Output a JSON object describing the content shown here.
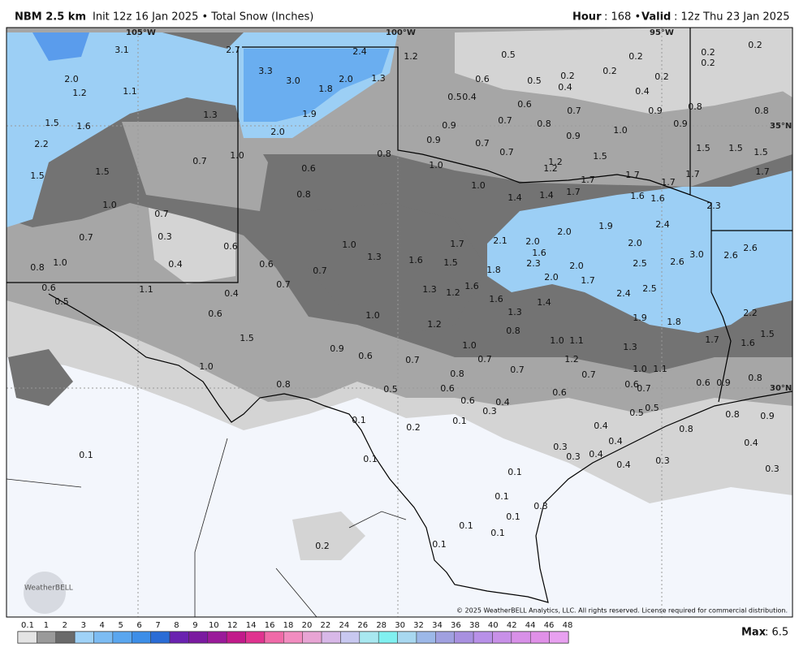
{
  "header": {
    "model": "NBM 2.5 km",
    "init": "Init 12z 16 Jan 2025 • Total Snow (Inches)",
    "hour_label": "Hour",
    "hour": ": 168 •",
    "valid_label": "Valid",
    "valid": ": 12z Thu 23 Jan 2025"
  },
  "map": {
    "grid_labels": [
      "105°W",
      "100°W",
      "95°W",
      "35°N",
      "30°N"
    ],
    "labels": [
      "3.1",
      "2.7",
      "2.4",
      "1.2",
      "0.5",
      "0.2",
      "0.2",
      "0.2",
      "2.0",
      "3.3",
      "3.0",
      "1.8",
      "2.0",
      "1.3",
      "0.6",
      "0.5",
      "0.2",
      "0.2",
      "0.2",
      "0.2",
      "1.2",
      "1.1",
      "0.4",
      "0.4",
      "0.5",
      "0.4",
      "0.6",
      "0.7",
      "0.9",
      "0.8",
      "0.8",
      "1.5",
      "1.6",
      "1.3",
      "2.0",
      "1.9",
      "0.9",
      "0.7",
      "0.8",
      "0.9",
      "1.0",
      "0.9",
      "2.2",
      "0.9",
      "0.7",
      "0.7",
      "1.5",
      "1.5",
      "1.5",
      "1.5",
      "1.5",
      "1.5",
      "0.7",
      "1.0",
      "0.8",
      "1.0",
      "1.2",
      "1.2",
      "1.7",
      "1.7",
      "1.7",
      "1.7",
      "1.7",
      "0.6",
      "0.8",
      "1.0",
      "1.4",
      "1.4",
      "1.7",
      "1.6",
      "1.6",
      "2.3",
      "1.0",
      "0.7",
      "1.9",
      "2.4",
      "0.7",
      "0.3",
      "0.6",
      "1.0",
      "1.7",
      "2.1",
      "2.0",
      "2.0",
      "2.0",
      "2.6",
      "0.4",
      "1.0",
      "0.8",
      "0.6",
      "1.3",
      "1.6",
      "1.5",
      "1.8",
      "1.6",
      "2.3",
      "2.0",
      "2.5",
      "2.6",
      "3.0",
      "2.6",
      "0.7",
      "0.7",
      "1.3",
      "1.2",
      "1.6",
      "1.7",
      "2.0",
      "2.4",
      "2.5",
      "0.6",
      "0.5",
      "1.1",
      "0.4",
      "1.6",
      "1.3",
      "1.4",
      "2.2",
      "1.9",
      "1.8",
      "0.6",
      "1.5",
      "1.0",
      "1.2",
      "0.8",
      "1.5",
      "1.7",
      "1.6",
      "1.0",
      "0.9",
      "0.6",
      "0.7",
      "1.0",
      "0.7",
      "1.0",
      "1.1",
      "1.3",
      "1.2",
      "0.8",
      "0.7",
      "0.7",
      "1.0",
      "1.1",
      "0.6",
      "0.9",
      "0.8",
      "0.8",
      "0.5",
      "0.6",
      "0.6",
      "0.6",
      "0.7",
      "0.6",
      "0.4",
      "0.3",
      "0.5",
      "0.5",
      "0.8",
      "0.9",
      "0.1",
      "0.2",
      "0.1",
      "0.4",
      "0.8",
      "0.1",
      "0.1",
      "0.3",
      "0.4",
      "0.3",
      "0.4",
      "0.4",
      "0.1",
      "0.4",
      "0.3",
      "0.3",
      "0.1",
      "0.3",
      "0.1",
      "0.1",
      "0.1",
      "0.2",
      "0.1"
    ],
    "copyright": "© 2025 WeatherBELL Analytics, LLC. All rights reserved. License required for commercial distribution.",
    "logo": "WeatherBELL"
  },
  "legend": {
    "labels": [
      "0.1",
      "1",
      "2",
      "3",
      "4",
      "5",
      "6",
      "7",
      "8",
      "9",
      "10",
      "12",
      "14",
      "16",
      "18",
      "20",
      "22",
      "24",
      "26",
      "28",
      "30",
      "32",
      "34",
      "36",
      "38",
      "40",
      "42",
      "44",
      "46",
      "48"
    ],
    "colors": [
      "#e4e4e4",
      "#9a9a9a",
      "#6a6a6a",
      "#9fd2f7",
      "#7cbcf3",
      "#5aa6ef",
      "#3d8ee8",
      "#2a6cd6",
      "#6a22b0",
      "#7a1aa0",
      "#9a1a9a",
      "#c21a8a",
      "#e0338f",
      "#f06aa8",
      "#f28cc0",
      "#e8a4d4",
      "#d8b8e8",
      "#c8c8f0",
      "#a8e8f0",
      "#80f0f0",
      "#a8d8f0",
      "#9cb8e8",
      "#a0a0e0",
      "#a890e0",
      "#b890e8",
      "#c890e8",
      "#d890e8",
      "#e090e8",
      "#e8a0f0"
    ],
    "max_label": "Max",
    "max": ": 6.5"
  }
}
